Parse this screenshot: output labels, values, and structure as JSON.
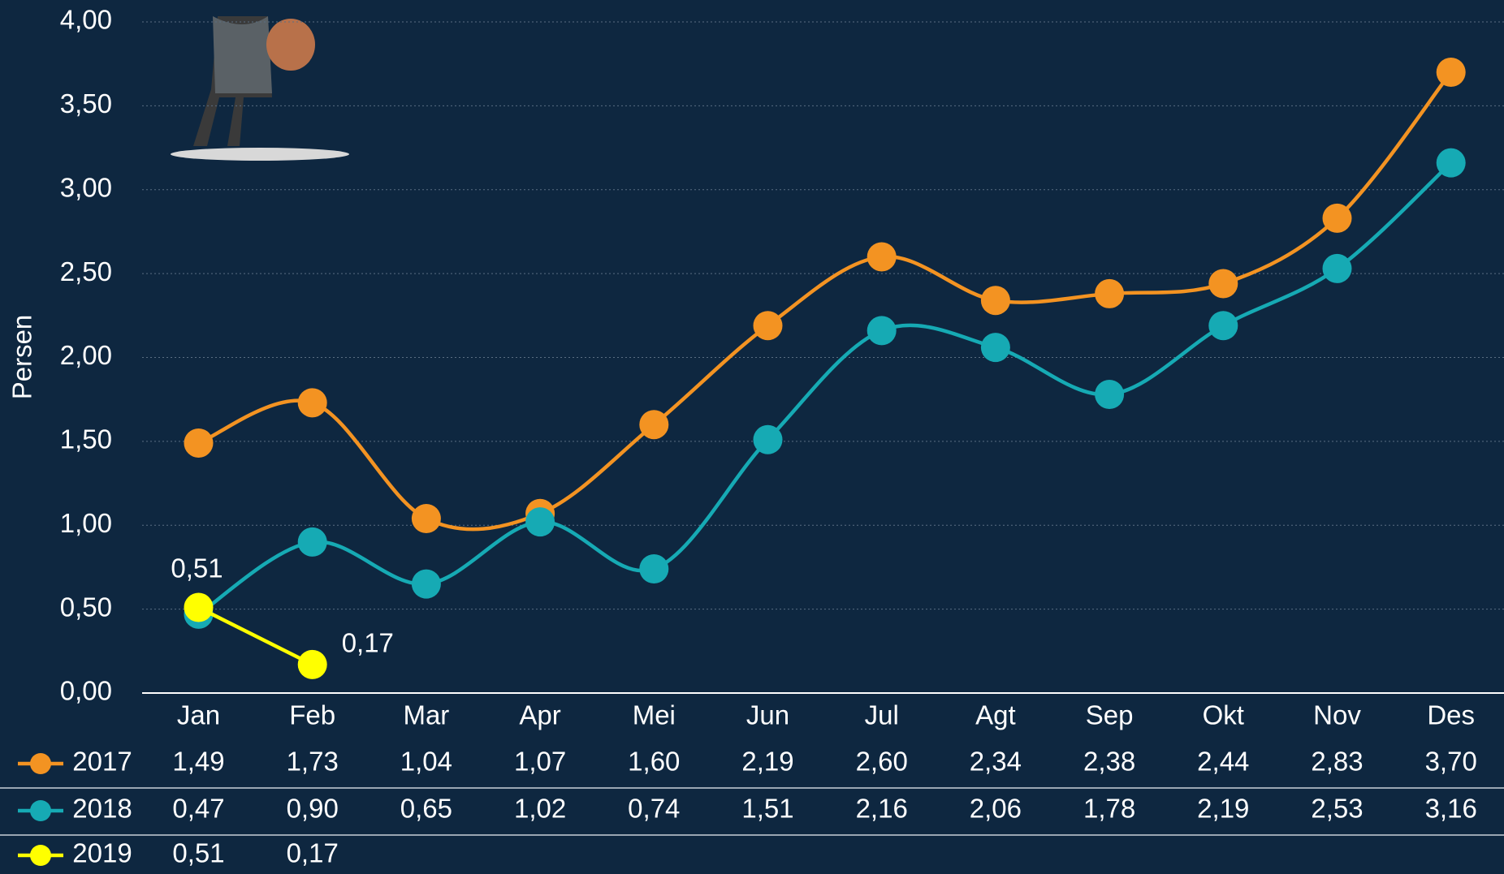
{
  "chart_data": {
    "type": "line",
    "y_label": "Persen",
    "categories": [
      "Jan",
      "Feb",
      "Mar",
      "Apr",
      "Mei",
      "Jun",
      "Jul",
      "Agt",
      "Sep",
      "Okt",
      "Nov",
      "Des"
    ],
    "series": [
      {
        "name": "2017",
        "color": "#f39322",
        "values": [
          1.49,
          1.73,
          1.04,
          1.07,
          1.6,
          2.19,
          2.6,
          2.34,
          2.38,
          2.44,
          2.83,
          3.7
        ],
        "value_labels": [
          "1,49",
          "1,73",
          "1,04",
          "1,07",
          "1,60",
          "2,19",
          "2,60",
          "2,34",
          "2,38",
          "2,44",
          "2,83",
          "3,70"
        ]
      },
      {
        "name": "2018",
        "color": "#16aab4",
        "values": [
          0.47,
          0.9,
          0.65,
          1.02,
          0.74,
          1.51,
          2.16,
          2.06,
          1.78,
          2.19,
          2.53,
          3.16
        ],
        "value_labels": [
          "0,47",
          "0,90",
          "0,65",
          "1,02",
          "0,74",
          "1,51",
          "2,16",
          "2,06",
          "1,78",
          "2,19",
          "2,53",
          "3,16"
        ]
      },
      {
        "name": "2019",
        "color": "#ffff00",
        "values": [
          0.51,
          0.17,
          null,
          null,
          null,
          null,
          null,
          null,
          null,
          null,
          null,
          null
        ],
        "value_labels": [
          "0,51",
          "0,17",
          null,
          null,
          null,
          null,
          null,
          null,
          null,
          null,
          null,
          null
        ]
      }
    ],
    "ylim": [
      0,
      4
    ],
    "yticks": [
      {
        "value": 0,
        "label": "0,00"
      },
      {
        "value": 0.5,
        "label": "0,50"
      },
      {
        "value": 1,
        "label": "1,00"
      },
      {
        "value": 1.5,
        "label": "1,50"
      },
      {
        "value": 2,
        "label": "2,00"
      },
      {
        "value": 2.5,
        "label": "2,50"
      },
      {
        "value": 3,
        "label": "3,00"
      },
      {
        "value": 3.5,
        "label": "3,50"
      },
      {
        "value": 4,
        "label": "4,00"
      }
    ],
    "grid": true
  }
}
